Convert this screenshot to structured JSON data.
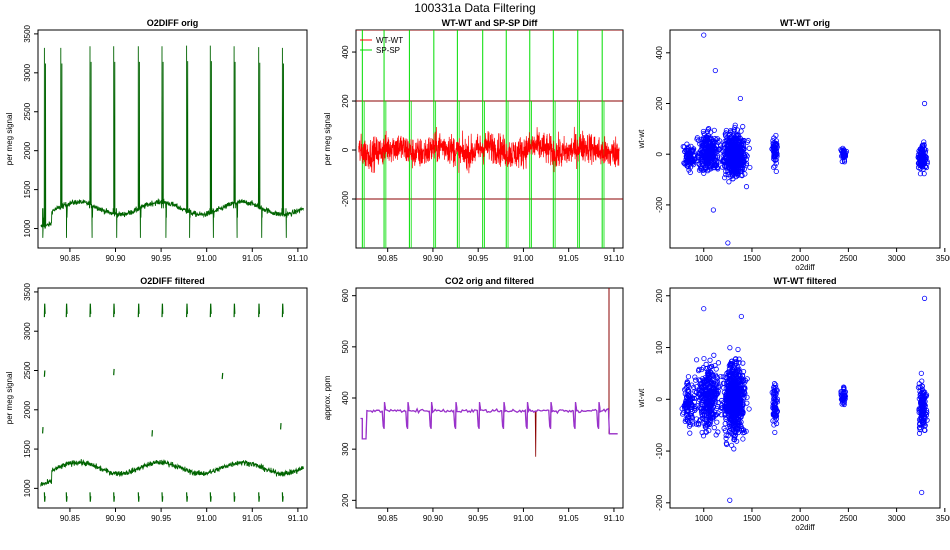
{
  "figure": {
    "suptitle": "100331a   Data Filtering"
  },
  "chart_data": [
    {
      "id": "p1",
      "type": "line",
      "title": "O2DIFF orig",
      "xlabel": "",
      "ylabel": "per meg signal",
      "xlim": [
        90.815,
        91.11
      ],
      "ylim": [
        750,
        3550
      ],
      "xticks": [
        90.85,
        90.9,
        90.95,
        91.0,
        91.05,
        91.1
      ],
      "yticks": [
        1000,
        1500,
        2000,
        2500,
        3000,
        3500
      ],
      "series": [
        {
          "color": "#006400",
          "baseline": 1260,
          "spikes": [
            {
              "x": 90.822,
              "y": 3320
            },
            {
              "x": 90.84,
              "y": 3320
            },
            {
              "x": 90.872,
              "y": 3340
            },
            {
              "x": 90.898,
              "y": 3340
            },
            {
              "x": 90.925,
              "y": 3340
            },
            {
              "x": 90.951,
              "y": 3340
            },
            {
              "x": 90.978,
              "y": 3350
            },
            {
              "x": 91.004,
              "y": 3350
            },
            {
              "x": 91.03,
              "y": 3340
            },
            {
              "x": 91.057,
              "y": 3330
            },
            {
              "x": 91.083,
              "y": 3320
            }
          ],
          "dips": [
            {
              "x": 90.82,
              "y": 880
            },
            {
              "x": 90.846,
              "y": 880
            },
            {
              "x": 90.874,
              "y": 880
            },
            {
              "x": 90.901,
              "y": 880
            },
            {
              "x": 90.927,
              "y": 880
            },
            {
              "x": 90.955,
              "y": 880
            },
            {
              "x": 90.981,
              "y": 880
            },
            {
              "x": 91.007,
              "y": 880
            },
            {
              "x": 91.033,
              "y": 880
            },
            {
              "x": 91.06,
              "y": 880
            },
            {
              "x": 91.087,
              "y": 880
            }
          ]
        }
      ]
    },
    {
      "id": "p2",
      "type": "line",
      "title": "WT-WT and SP-SP Diff",
      "xlabel": "",
      "ylabel": "per meg signal",
      "xlim": [
        90.815,
        91.11
      ],
      "ylim": [
        -400,
        490
      ],
      "xticks": [
        90.85,
        90.9,
        90.95,
        91.0,
        91.05,
        91.1
      ],
      "yticks": [
        -200,
        0,
        200,
        400
      ],
      "hlines": [
        200,
        -200,
        490
      ],
      "legend": [
        {
          "label": "WT-WT",
          "color": "#ff0000"
        },
        {
          "label": "SP-SP",
          "color": "#00dd00"
        }
      ],
      "series": [
        {
          "name": "WT-WT",
          "color": "#ff0000",
          "level": 0,
          "spread": 45
        },
        {
          "name": "SP-SP",
          "color": "#00dd00",
          "level": 0,
          "spread": 30,
          "spikes": [
            90.822,
            90.846,
            90.874,
            90.901,
            90.927,
            90.955,
            90.981,
            91.007,
            91.033,
            91.06,
            91.087
          ]
        }
      ]
    },
    {
      "id": "p3",
      "type": "scatter",
      "title": "WT-WT orig",
      "xlabel": "o2diff",
      "ylabel": "wt-wt",
      "xlim": [
        650,
        3450
      ],
      "ylim": [
        -370,
        490
      ],
      "xticks": [
        1000,
        1500,
        2000,
        2500,
        3000,
        3500
      ],
      "yticks": [
        -200,
        0,
        200,
        400
      ],
      "clusters": [
        {
          "x": 850,
          "y": -10,
          "sx": 45,
          "sy": 35,
          "n": 90
        },
        {
          "x": 1050,
          "y": 10,
          "sx": 80,
          "sy": 55,
          "n": 260
        },
        {
          "x": 1320,
          "y": 0,
          "sx": 75,
          "sy": 60,
          "n": 520
        },
        {
          "x": 1740,
          "y": 10,
          "sx": 20,
          "sy": 40,
          "n": 60
        },
        {
          "x": 2450,
          "y": 0,
          "sx": 20,
          "sy": 18,
          "n": 35
        },
        {
          "x": 3270,
          "y": -10,
          "sx": 28,
          "sy": 40,
          "n": 110
        }
      ],
      "outliers": [
        {
          "x": 1000,
          "y": 470
        },
        {
          "x": 1120,
          "y": 330
        },
        {
          "x": 1250,
          "y": -350
        },
        {
          "x": 1380,
          "y": 220
        },
        {
          "x": 1100,
          "y": -220
        },
        {
          "x": 3290,
          "y": 200
        }
      ],
      "color": "#0000ff"
    },
    {
      "id": "p4",
      "type": "line",
      "title": "O2DIFF filtered",
      "xlabel": "",
      "ylabel": "per meg signal",
      "xlim": [
        90.815,
        91.11
      ],
      "ylim": [
        750,
        3550
      ],
      "xticks": [
        90.85,
        90.9,
        90.95,
        91.0,
        91.05,
        91.1
      ],
      "yticks": [
        1000,
        1500,
        2000,
        2500,
        3000,
        3500
      ],
      "series": [
        {
          "color": "#006400",
          "baseline": 1260,
          "spikes": [
            90.822,
            90.846,
            90.872,
            90.898,
            90.925,
            90.951,
            90.978,
            91.004,
            91.03,
            91.057,
            91.083
          ],
          "mid": [
            {
              "x": 90.822,
              "y": 2460
            },
            {
              "x": 90.898,
              "y": 2480
            },
            {
              "x": 91.017,
              "y": 2430
            },
            {
              "x": 90.82,
              "y": 1740
            },
            {
              "x": 90.94,
              "y": 1700
            },
            {
              "x": 91.081,
              "y": 1790
            }
          ]
        }
      ]
    },
    {
      "id": "p5",
      "type": "line",
      "title": "CO2 orig and filtered",
      "xlabel": "",
      "ylabel": "approx. ppm",
      "xlim": [
        90.815,
        91.11
      ],
      "ylim": [
        185,
        615
      ],
      "xticks": [
        90.85,
        90.9,
        90.95,
        91.0,
        91.05,
        91.1
      ],
      "yticks": [
        200,
        300,
        400,
        500,
        600
      ],
      "series": [
        {
          "name": "orig",
          "color": "#8b0000",
          "level": 375
        },
        {
          "name": "filtered",
          "color": "#9932cc",
          "level": 375
        }
      ]
    },
    {
      "id": "p6",
      "type": "scatter",
      "title": "WT-WT filtered",
      "xlabel": "o2diff",
      "ylabel": "wt-wt",
      "xlim": [
        650,
        3450
      ],
      "ylim": [
        -210,
        215
      ],
      "xticks": [
        1000,
        1500,
        2000,
        2500,
        3000,
        3500
      ],
      "yticks": [
        -200,
        -100,
        0,
        100,
        200
      ],
      "clusters": [
        {
          "x": 850,
          "y": -10,
          "sx": 45,
          "sy": 30,
          "n": 110
        },
        {
          "x": 1050,
          "y": 5,
          "sx": 80,
          "sy": 45,
          "n": 320
        },
        {
          "x": 1320,
          "y": 0,
          "sx": 75,
          "sy": 50,
          "n": 620
        },
        {
          "x": 1740,
          "y": -10,
          "sx": 20,
          "sy": 35,
          "n": 70
        },
        {
          "x": 2450,
          "y": 5,
          "sx": 20,
          "sy": 12,
          "n": 40
        },
        {
          "x": 3270,
          "y": -15,
          "sx": 28,
          "sy": 35,
          "n": 130
        }
      ],
      "outliers": [
        {
          "x": 1000,
          "y": 175
        },
        {
          "x": 1390,
          "y": 160
        },
        {
          "x": 1270,
          "y": -195
        },
        {
          "x": 3290,
          "y": 195
        },
        {
          "x": 3260,
          "y": -180
        }
      ],
      "color": "#0000ff"
    }
  ]
}
